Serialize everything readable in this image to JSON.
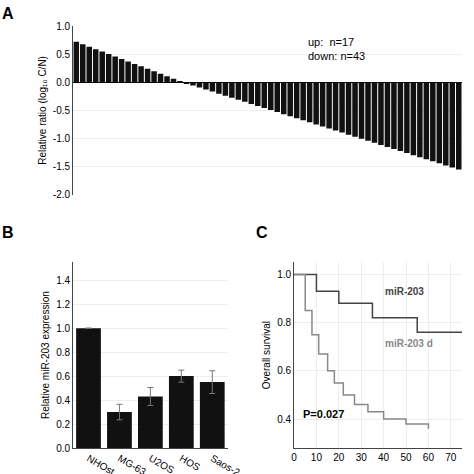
{
  "chart_data": [
    {
      "type": "bar",
      "title": "A",
      "ylabel": "Relative ratio (log₁₀ C/N)",
      "categories": [
        null,
        null,
        null,
        null,
        null,
        null,
        null,
        null,
        null,
        null,
        null,
        null,
        null,
        null,
        null,
        null,
        null,
        null,
        null,
        null,
        null,
        null,
        null,
        null,
        null,
        null,
        null,
        null,
        null,
        null,
        null,
        null,
        null,
        null,
        null,
        null,
        null,
        null,
        null,
        null,
        null,
        null,
        null,
        null,
        null,
        null,
        null,
        null,
        null,
        null,
        null,
        null,
        null,
        null,
        null,
        null,
        null,
        null,
        null,
        null
      ],
      "values": [
        0.72,
        0.67625,
        0.6325,
        0.58875,
        0.545,
        0.50125,
        0.4575,
        0.41375,
        0.37,
        0.32625,
        0.2825,
        0.23875,
        0.195,
        0.15125,
        0.1075,
        0.06375,
        0.02,
        -0.02,
        -0.0564285714,
        -0.0928571429,
        -0.1292857143,
        -0.1657142857,
        -0.2021428571,
        -0.2385714286,
        -0.275,
        -0.3114285714,
        -0.3478571429,
        -0.3842857143,
        -0.4207142857,
        -0.4571428571,
        -0.4935714286,
        -0.53,
        -0.5664285714,
        -0.6028571429,
        -0.6392857143,
        -0.6757142857,
        -0.7121428571,
        -0.7485714286,
        -0.785,
        -0.8214285714,
        -0.8578571429,
        -0.8942857143,
        -0.9307142857,
        -0.9671428571,
        -1.0035714286,
        -1.04,
        -1.0764285714,
        -1.1128571429,
        -1.1492857143,
        -1.1857142857,
        -1.2221428571,
        -1.2585714286,
        -1.295,
        -1.3314285714,
        -1.3678571429,
        -1.4042857143,
        -1.4407142857,
        -1.4771428571,
        -1.5135714286,
        -1.55
      ],
      "color": "#111111",
      "ylim": [
        -2.0,
        1.0
      ],
      "yticks": [
        {
          "value": 1.0,
          "label": "1.0"
        },
        0.5,
        {
          "value": 0.0,
          "label": "0.0"
        },
        -0.5,
        {
          "value": -1.0,
          "label": "-1.0"
        },
        -1.5,
        {
          "value": -2.0,
          "label": "-2.0"
        }
      ],
      "tick_labels": "y",
      "annotations": [
        "up:  n=17\ndown: n=43"
      ]
    },
    {
      "type": "bar",
      "title": "B",
      "ylabel": "Relative miR-203 expression",
      "categories": [
        "NHOst",
        "MG-63",
        "U2OS",
        "HOS",
        "Saos-2"
      ],
      "values": [
        1.0,
        0.3,
        0.43,
        0.6,
        0.55
      ],
      "errors": [
        0.0,
        0.065,
        0.075,
        0.05,
        0.095
      ],
      "color": "#111111",
      "ylim": [
        0,
        1.55
      ],
      "yticks": [
        {
          "value": 0.0,
          "label": "0.0"
        },
        0.2,
        0.4,
        0.6,
        0.8,
        {
          "value": 1.0,
          "label": "1.0"
        },
        1.2,
        1.4
      ]
    },
    {
      "type": "line",
      "title": "C",
      "ylabel": "Overall survival",
      "line_style": "step",
      "series": [
        {
          "name": "miR-203",
          "color": "#444444",
          "x": [
            0,
            8,
            10,
            20,
            35,
            55,
            75
          ],
          "values": [
            1.0,
            1.0,
            0.93,
            0.88,
            0.82,
            0.76,
            0.76
          ]
        },
        {
          "name": "miR-203 d",
          "color": "#888888",
          "x": [
            0,
            5,
            8,
            11,
            15,
            18,
            22,
            27,
            33,
            40,
            50,
            60
          ],
          "values": [
            1.0,
            0.85,
            0.75,
            0.67,
            0.6,
            0.55,
            0.5,
            0.46,
            0.43,
            0.4,
            0.38,
            0.36
          ]
        }
      ],
      "xlim": [
        0,
        75
      ],
      "xticks": [
        0,
        10,
        20,
        30,
        40,
        50,
        60,
        70
      ],
      "ylim": [
        0.28,
        1.05
      ],
      "yticks": [
        0.4,
        0.6,
        0.8,
        {
          "value": 1.0,
          "label": "1.0"
        }
      ],
      "annotations": [
        "P=0.027"
      ]
    }
  ]
}
